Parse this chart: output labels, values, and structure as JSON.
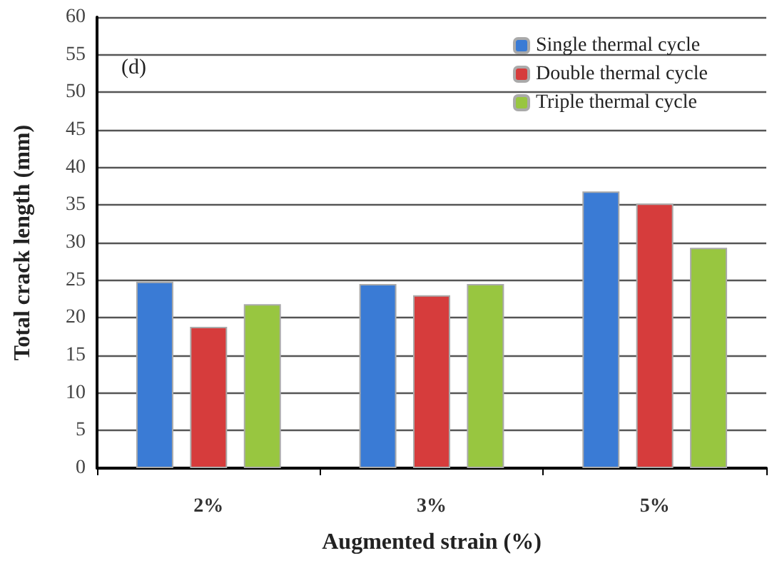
{
  "chart_data": {
    "type": "bar",
    "xlabel": "Augmented strain (%)",
    "ylabel": "Total crack length (mm)",
    "categories": [
      "2%",
      "3%",
      "5%"
    ],
    "series": [
      {
        "name": "Single thermal cycle",
        "color": "#3a7bd5",
        "values": [
          24.8,
          24.5,
          36.8
        ]
      },
      {
        "name": "Double thermal cycle",
        "color": "#d63c3c",
        "values": [
          18.8,
          23,
          35.2
        ]
      },
      {
        "name": "Triple thermal cycle",
        "color": "#98c640",
        "values": [
          21.8,
          24.5,
          29.3
        ]
      }
    ],
    "ylim": [
      0,
      60
    ],
    "yticks": [
      0,
      5,
      10,
      15,
      20,
      25,
      30,
      35,
      40,
      45,
      50,
      55,
      60
    ],
    "grid": "y",
    "legend": "top right",
    "annotations": [
      "(d)"
    ]
  }
}
